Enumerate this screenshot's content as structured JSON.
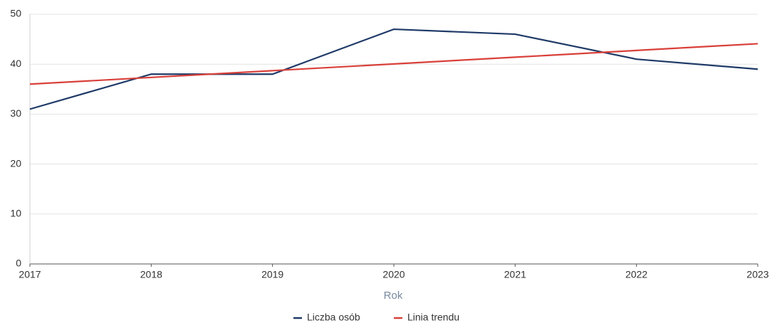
{
  "chart_data": {
    "type": "line",
    "x": [
      2017,
      2018,
      2019,
      2020,
      2021,
      2022,
      2023
    ],
    "xlim": [
      2017,
      2023
    ],
    "xticks": [
      2017,
      2018,
      2019,
      2020,
      2021,
      2022,
      2023
    ],
    "ylim": [
      0,
      50
    ],
    "yticks": [
      0,
      10,
      20,
      30,
      40,
      50
    ],
    "x_label": "Rok",
    "grid": true,
    "legend": "bottom",
    "series": [
      {
        "name": "Liczba osób",
        "color": "#1f3a68",
        "values": [
          31,
          38,
          38,
          47,
          46,
          41,
          39
        ]
      },
      {
        "name": "Linia trendu",
        "color": "#d9403a",
        "values": [
          36,
          37.35,
          38.7,
          40.05,
          41.4,
          42.75,
          44.1
        ]
      }
    ]
  }
}
